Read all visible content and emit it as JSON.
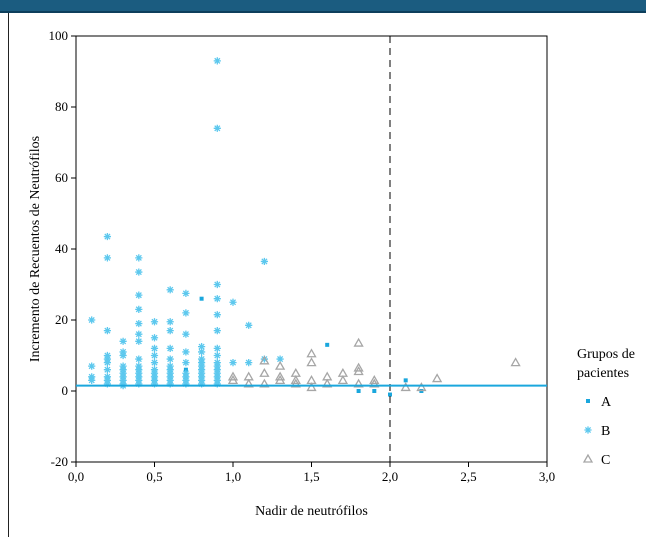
{
  "chart_data": {
    "type": "scatter",
    "title": "",
    "xlabel": "Nadir de neutrófilos",
    "ylabel": "Incremento de Recuentos de Neutrófilos",
    "xlim": [
      0,
      3
    ],
    "ylim": [
      -20,
      100
    ],
    "x_ticks": [
      "0,0",
      "0,5",
      "1,0",
      "1,5",
      "2,0",
      "2,5",
      "3,0"
    ],
    "y_ticks": [
      "-20",
      "0",
      "20",
      "40",
      "60",
      "80",
      "100"
    ],
    "x_tick_values": [
      0,
      0.5,
      1.0,
      1.5,
      2.0,
      2.5,
      3.0
    ],
    "y_tick_values": [
      -20,
      0,
      20,
      40,
      60,
      80,
      100
    ],
    "reference_line_x": 2.0,
    "reference_line_y": 1.5,
    "reference_line_color": "#1aa7dd",
    "legend": {
      "title_line1": "Grupos de",
      "title_line2": "pacientes",
      "placement": "right"
    },
    "series": [
      {
        "name": "A",
        "marker": "square",
        "color": "#1aa7dd",
        "points": [
          [
            0.8,
            26
          ],
          [
            0.7,
            6
          ],
          [
            1.6,
            13
          ],
          [
            1.8,
            0
          ],
          [
            1.9,
            0
          ],
          [
            2.0,
            -1
          ],
          [
            2.1,
            3
          ],
          [
            2.2,
            0
          ],
          [
            0.5,
            3
          ],
          [
            0.9,
            2
          ]
        ]
      },
      {
        "name": "B",
        "marker": "asterisk",
        "color": "#5cc8ee",
        "points": [
          [
            0.1,
            20
          ],
          [
            0.1,
            7
          ],
          [
            0.1,
            4
          ],
          [
            0.1,
            3
          ],
          [
            0.2,
            43.5
          ],
          [
            0.2,
            37.5
          ],
          [
            0.2,
            17
          ],
          [
            0.2,
            10
          ],
          [
            0.2,
            9
          ],
          [
            0.2,
            8
          ],
          [
            0.2,
            6
          ],
          [
            0.2,
            4
          ],
          [
            0.2,
            3
          ],
          [
            0.2,
            2
          ],
          [
            0.3,
            14
          ],
          [
            0.3,
            11
          ],
          [
            0.3,
            10
          ],
          [
            0.3,
            7
          ],
          [
            0.3,
            6
          ],
          [
            0.3,
            5
          ],
          [
            0.3,
            4
          ],
          [
            0.3,
            3
          ],
          [
            0.3,
            2
          ],
          [
            0.3,
            1.5
          ],
          [
            0.4,
            37.5
          ],
          [
            0.4,
            33.5
          ],
          [
            0.4,
            27
          ],
          [
            0.4,
            23
          ],
          [
            0.4,
            19
          ],
          [
            0.4,
            16
          ],
          [
            0.4,
            14
          ],
          [
            0.4,
            9
          ],
          [
            0.4,
            7
          ],
          [
            0.4,
            6
          ],
          [
            0.4,
            5
          ],
          [
            0.4,
            4
          ],
          [
            0.4,
            3
          ],
          [
            0.4,
            2
          ],
          [
            0.5,
            19.5
          ],
          [
            0.5,
            15
          ],
          [
            0.5,
            12
          ],
          [
            0.5,
            10
          ],
          [
            0.5,
            8
          ],
          [
            0.5,
            6
          ],
          [
            0.5,
            5
          ],
          [
            0.5,
            4
          ],
          [
            0.5,
            3
          ],
          [
            0.5,
            2
          ],
          [
            0.6,
            28.5
          ],
          [
            0.6,
            19.5
          ],
          [
            0.6,
            17
          ],
          [
            0.6,
            12
          ],
          [
            0.6,
            9
          ],
          [
            0.6,
            7
          ],
          [
            0.6,
            6
          ],
          [
            0.6,
            5
          ],
          [
            0.6,
            4
          ],
          [
            0.6,
            3
          ],
          [
            0.6,
            2
          ],
          [
            0.7,
            27.5
          ],
          [
            0.7,
            22
          ],
          [
            0.7,
            16
          ],
          [
            0.7,
            11
          ],
          [
            0.7,
            8
          ],
          [
            0.7,
            5
          ],
          [
            0.7,
            4
          ],
          [
            0.7,
            3
          ],
          [
            0.7,
            2
          ],
          [
            0.8,
            12.5
          ],
          [
            0.8,
            11
          ],
          [
            0.8,
            9
          ],
          [
            0.8,
            8
          ],
          [
            0.8,
            7
          ],
          [
            0.8,
            6
          ],
          [
            0.8,
            5
          ],
          [
            0.8,
            4
          ],
          [
            0.8,
            3
          ],
          [
            0.8,
            2
          ],
          [
            0.9,
            93
          ],
          [
            0.9,
            74
          ],
          [
            0.9,
            30
          ],
          [
            0.9,
            26
          ],
          [
            0.9,
            21.5
          ],
          [
            0.9,
            17
          ],
          [
            0.9,
            12
          ],
          [
            0.9,
            10
          ],
          [
            0.9,
            8
          ],
          [
            0.9,
            7
          ],
          [
            0.9,
            6
          ],
          [
            0.9,
            5
          ],
          [
            0.9,
            4
          ],
          [
            0.9,
            3
          ],
          [
            0.9,
            2
          ],
          [
            1.0,
            25
          ],
          [
            1.0,
            8
          ],
          [
            1.1,
            18.5
          ],
          [
            1.1,
            8
          ],
          [
            1.2,
            36.5
          ],
          [
            1.2,
            9
          ],
          [
            1.3,
            9
          ]
        ]
      },
      {
        "name": "C",
        "marker": "triangle",
        "color": "#a6a6a6",
        "points": [
          [
            1.0,
            4
          ],
          [
            1.0,
            3
          ],
          [
            1.1,
            4
          ],
          [
            1.1,
            2
          ],
          [
            1.2,
            8.5
          ],
          [
            1.2,
            5
          ],
          [
            1.2,
            2
          ],
          [
            1.3,
            7
          ],
          [
            1.3,
            4
          ],
          [
            1.3,
            3
          ],
          [
            1.4,
            5
          ],
          [
            1.4,
            3
          ],
          [
            1.4,
            2
          ],
          [
            1.5,
            10.5
          ],
          [
            1.5,
            8
          ],
          [
            1.5,
            3
          ],
          [
            1.5,
            1
          ],
          [
            1.6,
            4
          ],
          [
            1.6,
            2
          ],
          [
            1.7,
            5
          ],
          [
            1.7,
            3
          ],
          [
            1.8,
            13.5
          ],
          [
            1.8,
            6.5
          ],
          [
            1.8,
            5.5
          ],
          [
            1.8,
            2
          ],
          [
            1.9,
            3
          ],
          [
            1.9,
            2
          ],
          [
            2.1,
            1
          ],
          [
            2.2,
            1
          ],
          [
            2.3,
            3.5
          ],
          [
            2.8,
            8
          ]
        ]
      }
    ]
  }
}
